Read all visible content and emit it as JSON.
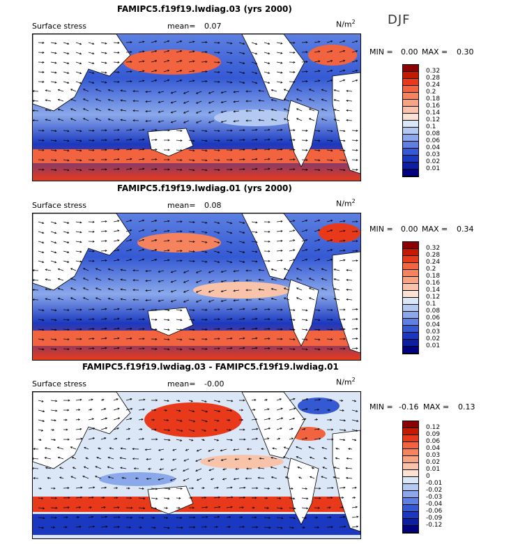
{
  "season": "DJF",
  "units_prefix": "N/m",
  "units_sup": "2",
  "chart_data": [
    {
      "type": "heatmap",
      "title": "FAMIPC5.f19f19.lwdiag.03 (yrs 2000)",
      "field_label": "Surface stress",
      "mean_label": "mean=",
      "mean_value": "0.07",
      "min_label": "MIN =",
      "min_value": "0.00",
      "max_label": "MAX =",
      "max_value": "0.30",
      "colorbar_levels": [
        "0.32",
        "0.28",
        "0.24",
        "0.2",
        "0.18",
        "0.16",
        "0.14",
        "0.12",
        "0.1",
        "0.08",
        "0.06",
        "0.04",
        "0.03",
        "0.02",
        "0.01"
      ],
      "colorbar_colors": [
        "#8b0000",
        "#c61a00",
        "#e83a1a",
        "#f26440",
        "#f5845e",
        "#f7a482",
        "#f8c3a9",
        "#fbe2d3",
        "#dbe6f7",
        "#b3c9f1",
        "#8aa8ea",
        "#5d80e1",
        "#3559d3",
        "#1a39c0",
        "#0b1fa0",
        "#000080"
      ]
    },
    {
      "type": "heatmap",
      "title": "FAMIPC5.f19f19.lwdiag.01 (yrs 2000)",
      "field_label": "Surface stress",
      "mean_label": "mean=",
      "mean_value": "0.08",
      "min_label": "MIN =",
      "min_value": "0.00",
      "max_label": "MAX =",
      "max_value": "0.34",
      "colorbar_levels": [
        "0.32",
        "0.28",
        "0.24",
        "0.2",
        "0.18",
        "0.16",
        "0.14",
        "0.12",
        "0.1",
        "0.08",
        "0.06",
        "0.04",
        "0.03",
        "0.02",
        "0.01"
      ],
      "colorbar_colors": [
        "#8b0000",
        "#c61a00",
        "#e83a1a",
        "#f26440",
        "#f5845e",
        "#f7a482",
        "#f8c3a9",
        "#fbe2d3",
        "#dbe6f7",
        "#b3c9f1",
        "#8aa8ea",
        "#5d80e1",
        "#3559d3",
        "#1a39c0",
        "#0b1fa0",
        "#000080"
      ]
    },
    {
      "type": "heatmap",
      "title": "FAMIPC5.f19f19.lwdiag.03 - FAMIPC5.f19f19.lwdiag.01",
      "field_label": "Surface stress",
      "mean_label": "mean=",
      "mean_value": "-0.00",
      "min_label": "MIN =",
      "min_value": "-0.16",
      "max_label": "MAX =",
      "max_value": "0.13",
      "colorbar_levels": [
        "0.12",
        "0.09",
        "0.06",
        "0.04",
        "0.03",
        "0.02",
        "0.01",
        "0",
        "-0.01",
        "-0.02",
        "-0.03",
        "-0.04",
        "-0.06",
        "-0.09",
        "-0.12"
      ],
      "colorbar_colors": [
        "#8b0000",
        "#c61a00",
        "#e83a1a",
        "#f26440",
        "#f5845e",
        "#f7a482",
        "#f8c3a9",
        "#fbe2d3",
        "#dbe6f7",
        "#b3c9f1",
        "#8aa8ea",
        "#5d80e1",
        "#3559d3",
        "#1a39c0",
        "#0b1fa0",
        "#000080"
      ]
    }
  ]
}
